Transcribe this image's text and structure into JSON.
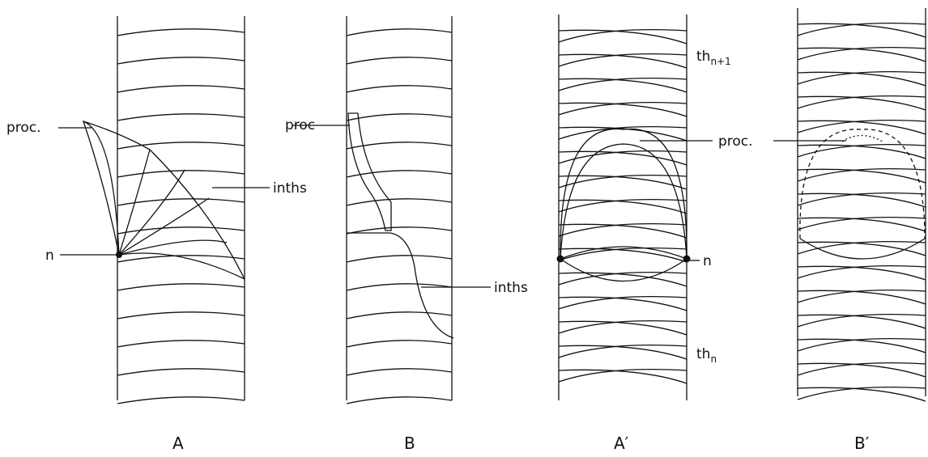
{
  "panels": [
    {
      "label": "A",
      "annotations": [
        "proc.",
        "inths",
        "n"
      ]
    },
    {
      "label": "B",
      "annotations": [
        "proc",
        "inths"
      ]
    },
    {
      "label": "A′",
      "annotations": [
        {
          "text": "th",
          "subscript": "n+1"
        },
        "proc.",
        "n",
        {
          "text": "th",
          "subscript": "n"
        }
      ]
    },
    {
      "label": "B′"
    }
  ]
}
